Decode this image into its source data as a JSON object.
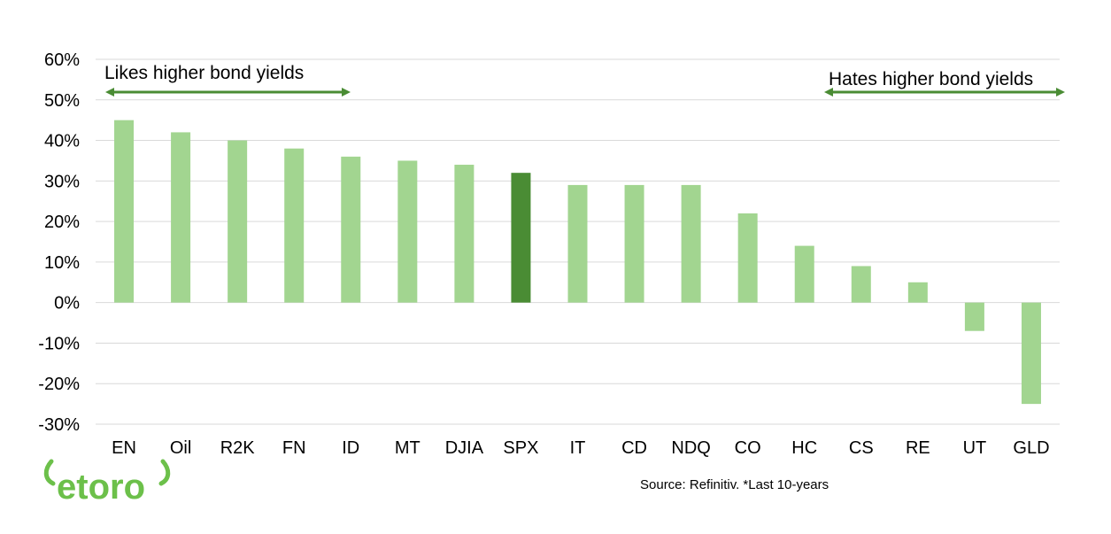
{
  "chart_data": {
    "type": "bar",
    "categories": [
      "EN",
      "Oil",
      "R2K",
      "FN",
      "ID",
      "MT",
      "DJIA",
      "SPX",
      "IT",
      "CD",
      "NDQ",
      "CO",
      "HC",
      "CS",
      "RE",
      "UT",
      "GLD"
    ],
    "values": [
      45,
      42,
      40,
      38,
      36,
      35,
      34,
      32,
      29,
      29,
      29,
      22,
      14,
      9,
      5,
      -7,
      -25
    ],
    "unit": "%",
    "ylim": [
      -30,
      60
    ],
    "yticks": [
      60,
      50,
      40,
      30,
      20,
      10,
      0,
      -10,
      -20,
      -30
    ],
    "ytick_labels": [
      "60%",
      "50%",
      "40%",
      "30%",
      "20%",
      "10%",
      "0%",
      "-10%",
      "-20%",
      "-30%"
    ],
    "grid": true,
    "highlight_category": "SPX",
    "bar_color": "#a2d590",
    "highlight_color": "#4a8c34",
    "annotations": [
      {
        "text": "Likes higher bond yields",
        "arrow": "double",
        "placement": "top-left"
      },
      {
        "text": "Hates higher bond yields",
        "arrow": "double",
        "placement": "top-right"
      }
    ],
    "arrow_color": "#4a8c34"
  },
  "footer": {
    "source": "Source: Refinitiv. *Last 10-years",
    "logo_text": "etoro",
    "logo_color": "#6cc04a"
  }
}
